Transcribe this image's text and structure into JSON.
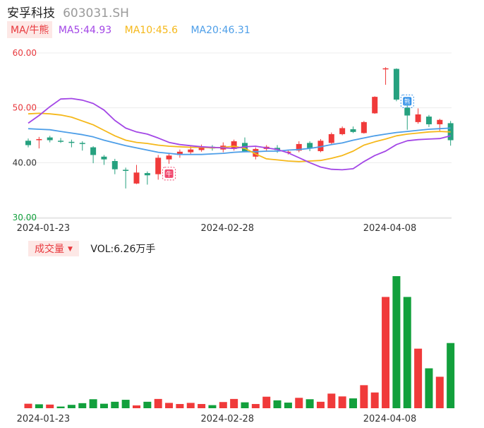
{
  "header": {
    "name": "安孚科技",
    "code": "603031.SH"
  },
  "ma": {
    "tag": "MA/牛熊",
    "ma5": "MA5:44.93",
    "ma10": "MA10:45.6",
    "ma20": "MA20:46.31"
  },
  "volume_header": {
    "tag": "成交量",
    "value": "VOL:6.26万手"
  },
  "colors": {
    "up": "#f03a3a",
    "down": "#12a03c",
    "candle_down": "#26a17f",
    "ma5": "#a347e6",
    "ma10": "#f5b81a",
    "ma20": "#4d9ee8"
  },
  "markers": {
    "bull": "牛",
    "bear": "熊"
  },
  "chart_data": [
    {
      "type": "candlestick",
      "y_axis": {
        "ticks": [
          "60.00",
          "50.00",
          "40.00",
          "30.00"
        ],
        "tick_values": [
          60,
          50,
          40,
          30
        ],
        "range": [
          30,
          60
        ]
      },
      "x_axis": {
        "tick_labels": [
          "2024-01-23",
          "2024-02-28",
          "2024-04-08"
        ],
        "tick_index": [
          1,
          18,
          33
        ]
      },
      "candles": [
        {
          "o": 44.0,
          "c": 43.2,
          "h": 44.4,
          "l": 42.8
        },
        {
          "o": 44.1,
          "c": 44.3,
          "h": 44.7,
          "l": 42.6
        },
        {
          "o": 44.6,
          "c": 44.1,
          "h": 44.9,
          "l": 43.7
        },
        {
          "o": 44.0,
          "c": 43.9,
          "h": 44.5,
          "l": 43.6
        },
        {
          "o": 43.8,
          "c": 43.7,
          "h": 44.2,
          "l": 42.8
        },
        {
          "o": 43.6,
          "c": 43.5,
          "h": 43.9,
          "l": 42.2
        },
        {
          "o": 42.8,
          "c": 41.4,
          "h": 43.0,
          "l": 39.9
        },
        {
          "o": 41.1,
          "c": 40.6,
          "h": 41.4,
          "l": 39.6
        },
        {
          "o": 40.3,
          "c": 38.8,
          "h": 40.7,
          "l": 37.9
        },
        {
          "o": 38.7,
          "c": 38.5,
          "h": 39.1,
          "l": 35.3
        },
        {
          "o": 36.2,
          "c": 38.2,
          "h": 39.6,
          "l": 36.1
        },
        {
          "o": 38.1,
          "c": 37.7,
          "h": 38.4,
          "l": 36.0
        },
        {
          "o": 37.9,
          "c": 40.9,
          "h": 41.4,
          "l": 36.9
        },
        {
          "o": 40.6,
          "c": 41.3,
          "h": 41.6,
          "l": 39.8
        },
        {
          "o": 41.4,
          "c": 42.0,
          "h": 42.4,
          "l": 40.9
        },
        {
          "o": 41.9,
          "c": 42.4,
          "h": 43.0,
          "l": 41.6
        },
        {
          "o": 42.3,
          "c": 42.9,
          "h": 43.3,
          "l": 42.0
        },
        {
          "o": 42.9,
          "c": 42.6,
          "h": 43.2,
          "l": 42.2
        },
        {
          "o": 42.4,
          "c": 43.1,
          "h": 43.7,
          "l": 41.9
        },
        {
          "o": 42.5,
          "c": 43.9,
          "h": 44.2,
          "l": 42.2
        },
        {
          "o": 43.6,
          "c": 42.1,
          "h": 44.6,
          "l": 41.9
        },
        {
          "o": 41.1,
          "c": 42.5,
          "h": 42.8,
          "l": 40.6
        },
        {
          "o": 42.5,
          "c": 42.9,
          "h": 43.2,
          "l": 42.0
        },
        {
          "o": 42.7,
          "c": 42.3,
          "h": 43.2,
          "l": 41.8
        },
        {
          "o": 41.9,
          "c": 42.0,
          "h": 42.3,
          "l": 41.5
        },
        {
          "o": 42.2,
          "c": 43.4,
          "h": 43.9,
          "l": 41.9
        },
        {
          "o": 43.6,
          "c": 42.6,
          "h": 43.9,
          "l": 42.1
        },
        {
          "o": 42.1,
          "c": 44.0,
          "h": 44.3,
          "l": 41.9
        },
        {
          "o": 43.6,
          "c": 45.2,
          "h": 45.5,
          "l": 43.4
        },
        {
          "o": 45.2,
          "c": 46.3,
          "h": 46.6,
          "l": 45.0
        },
        {
          "o": 46.1,
          "c": 45.6,
          "h": 46.6,
          "l": 45.4
        },
        {
          "o": 45.4,
          "c": 47.4,
          "h": 47.6,
          "l": 45.3
        },
        {
          "o": 49.0,
          "c": 52.0,
          "h": 52.1,
          "l": 48.9
        },
        {
          "o": 57.2,
          "c": 57.2,
          "h": 57.4,
          "l": 54.2
        },
        {
          "o": 57.1,
          "c": 51.5,
          "h": 57.2,
          "l": 51.2
        },
        {
          "o": 50.0,
          "c": 48.6,
          "h": 50.4,
          "l": 46.0
        },
        {
          "o": 47.4,
          "c": 48.8,
          "h": 49.9,
          "l": 47.1
        },
        {
          "o": 48.4,
          "c": 47.0,
          "h": 48.7,
          "l": 46.5
        },
        {
          "o": 47.0,
          "c": 47.8,
          "h": 48.0,
          "l": 45.8
        },
        {
          "o": 47.2,
          "c": 44.1,
          "h": 47.6,
          "l": 43.1
        }
      ],
      "ma5": [
        47.2,
        48.6,
        50.2,
        51.6,
        51.7,
        51.4,
        50.8,
        49.6,
        47.7,
        46.3,
        45.6,
        45.2,
        44.5,
        43.7,
        43.3,
        43.1,
        42.9,
        42.8,
        42.7,
        42.6,
        42.9,
        43.0,
        42.7,
        42.4,
        41.8,
        40.9,
        40.0,
        39.2,
        38.8,
        38.7,
        38.9,
        40.2,
        41.3,
        42.1,
        43.3,
        44.0,
        44.2,
        44.3,
        44.4,
        44.9
      ],
      "ma10": [
        48.9,
        49.0,
        48.9,
        48.7,
        48.3,
        47.6,
        46.9,
        45.9,
        44.9,
        44.1,
        43.7,
        43.5,
        43.2,
        43.0,
        42.9,
        42.8,
        42.8,
        42.7,
        42.8,
        43.0,
        42.6,
        41.6,
        40.7,
        40.5,
        40.3,
        40.2,
        40.3,
        40.4,
        40.8,
        41.3,
        42.1,
        43.2,
        43.8,
        44.3,
        44.9,
        45.2,
        45.4,
        45.6,
        45.7,
        45.6
      ],
      "ma20": [
        46.2,
        46.1,
        46.0,
        45.7,
        45.4,
        45.1,
        44.7,
        44.1,
        43.6,
        43.1,
        42.7,
        42.3,
        41.9,
        41.7,
        41.5,
        41.5,
        41.5,
        41.6,
        41.7,
        41.9,
        42.0,
        42.0,
        42.1,
        42.1,
        42.3,
        42.4,
        42.6,
        42.9,
        43.3,
        43.6,
        44.1,
        44.5,
        44.9,
        45.2,
        45.5,
        45.7,
        45.9,
        46.1,
        46.2,
        46.3
      ],
      "signals": [
        {
          "index": 13,
          "label": "牛",
          "value": 38.0
        },
        {
          "index": 35,
          "label": "熊",
          "value": 51.2
        }
      ]
    },
    {
      "type": "bar",
      "name": "成交量",
      "x_axis": {
        "tick_labels": [
          "2024-01-23",
          "2024-02-28",
          "2024-04-08"
        ],
        "tick_index": [
          1,
          18,
          33
        ]
      },
      "values": [
        0.16,
        0.14,
        0.13,
        0.06,
        0.12,
        0.18,
        0.32,
        0.16,
        0.23,
        0.3,
        0.1,
        0.23,
        0.33,
        0.19,
        0.15,
        0.19,
        0.15,
        0.11,
        0.22,
        0.33,
        0.21,
        0.15,
        0.41,
        0.28,
        0.2,
        0.37,
        0.32,
        0.23,
        0.52,
        0.42,
        0.35,
        0.82,
        0.56,
        3.96,
        4.7,
        3.96,
        2.12,
        1.42,
        1.12,
        2.32
      ],
      "directions": [
        "up",
        "down",
        "up",
        "down",
        "down",
        "down",
        "down",
        "down",
        "down",
        "down",
        "up",
        "down",
        "up",
        "up",
        "up",
        "up",
        "up",
        "down",
        "up",
        "up",
        "down",
        "up",
        "up",
        "down",
        "down",
        "up",
        "down",
        "up",
        "up",
        "up",
        "down",
        "up",
        "up",
        "up",
        "down",
        "down",
        "up",
        "down",
        "up",
        "down"
      ]
    }
  ]
}
